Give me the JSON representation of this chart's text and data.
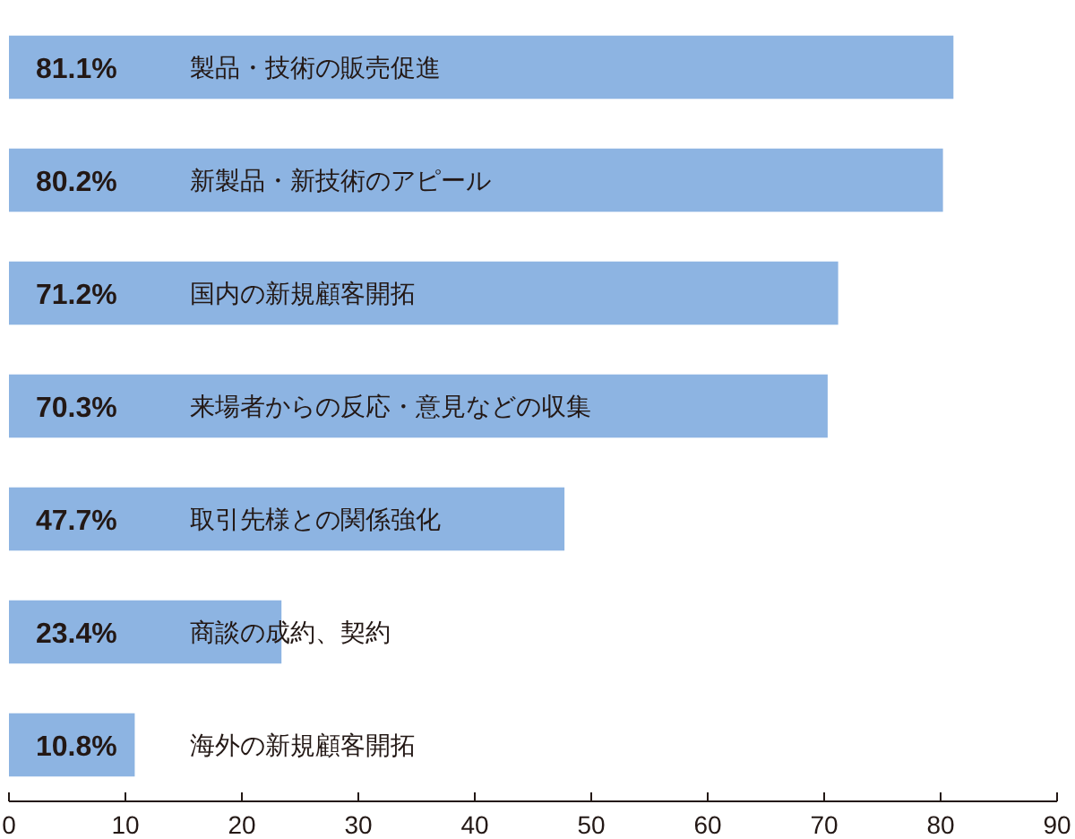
{
  "chart_data": {
    "type": "bar",
    "orientation": "horizontal",
    "color": "#8db4e2",
    "categories": [
      "製品・技術の販売促進",
      "新製品・新技術のアピール",
      "国内の新規顧客開拓",
      "来場者からの反応・意見などの収集",
      "取引先様との関係強化",
      "商談の成約、契約",
      "海外の新規顧客開拓"
    ],
    "values": [
      81.1,
      80.2,
      71.2,
      70.3,
      47.7,
      23.4,
      10.8
    ],
    "value_labels": [
      "81.1%",
      "80.2%",
      "71.2%",
      "70.3%",
      "47.7%",
      "23.4%",
      "10.8%"
    ],
    "xlim": [
      0,
      90
    ],
    "xticks": [
      0,
      10,
      20,
      30,
      40,
      50,
      60,
      70,
      80,
      90
    ]
  }
}
